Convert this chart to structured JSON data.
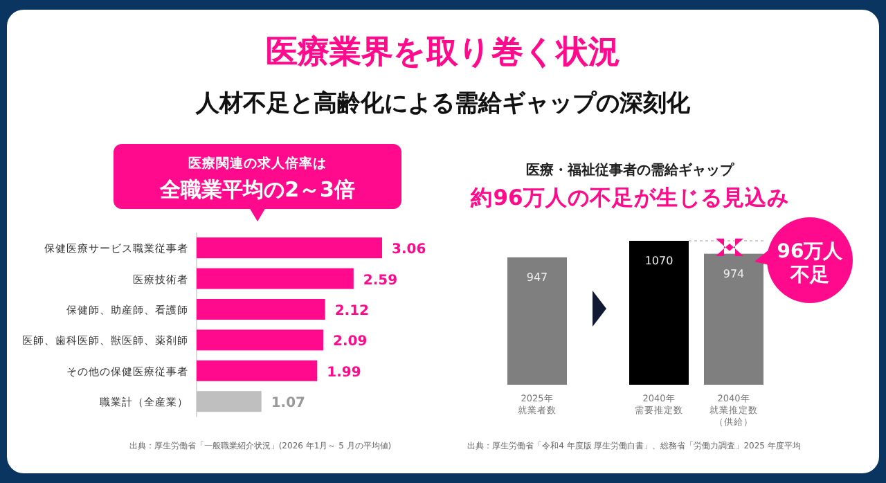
{
  "chart_data": [
    {
      "type": "bar",
      "orientation": "horizontal",
      "title": "医療業界を取り巻く状況",
      "subtitle": "人材不足と高齢化による需給ギャップの深刻化",
      "annotations": [
        "医療関連の求人倍率は",
        "全職業平均の2～3倍",
        "出典：厚生労働省「一般職業紹介状況」(2026 年1月～ 5 月の平均値)"
      ],
      "categories": [
        "保健医療サービス職業従事者",
        "医療技術者",
        "保健師、助産師、看護師",
        "医師、歯科医師、獣医師、薬剤師",
        "その他の保健医療従事者",
        "職業計（全産業）"
      ],
      "values": [
        3.06,
        2.59,
        2.12,
        2.09,
        1.99,
        1.07
      ],
      "colors": [
        "#ff0a8c",
        "#ff0a8c",
        "#ff0a8c",
        "#ff0a8c",
        "#ff0a8c",
        "#bfbfbf"
      ],
      "data_labels": true,
      "tick_labels": "y"
    },
    {
      "type": "bar",
      "title": "医療・福祉従事者の需給ギャップ",
      "subtitle": "約96万人の不足が生じる見込み",
      "annotations": [
        "96万人不足",
        "出典：厚生労働省「令和4 年度版 厚生労働白書」、総務省「労働力調査」2025 年度平均"
      ],
      "categories": [
        "2025年就業者数",
        "2040年需要推定数",
        "2040年就業推定数（供給）"
      ],
      "values": [
        947,
        1070,
        974
      ],
      "colors": [
        "#7f7f7f",
        "#000000",
        "#7f7f7f"
      ],
      "data_labels": true,
      "tick_labels": "x",
      "ref_lines": [
        {
          "axis": "y",
          "value": 1070,
          "label": null,
          "color": "#bfbfbf",
          "line_style": "dotted"
        }
      ]
    }
  ]
}
